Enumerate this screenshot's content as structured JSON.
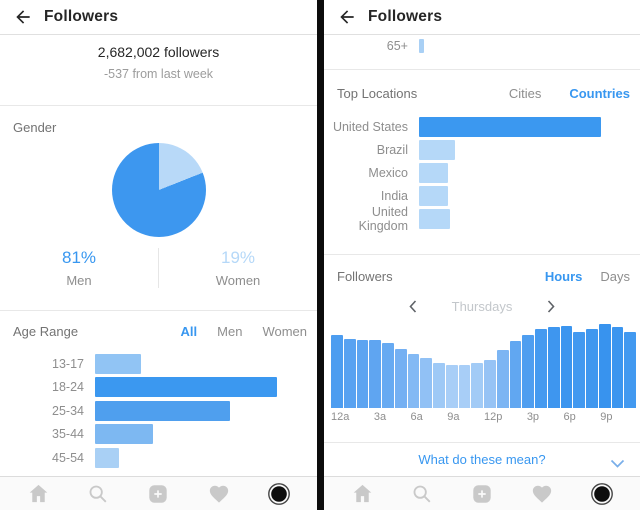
{
  "colors": {
    "accent_blue": "#3897f0",
    "light_blue": "#b5d8f8",
    "divider": "#e8e8e8",
    "text_dark": "#262626",
    "text_gray": "#8e8e8e",
    "nav_icon_gray": "#c9c9c9"
  },
  "left": {
    "header": {
      "title": "Followers",
      "back_icon": "back-arrow"
    },
    "summary": {
      "count": "2,682,002 followers",
      "delta": "-537 from last week"
    },
    "gender": {
      "label": "Gender",
      "chart_data": {
        "type": "pie",
        "slices": [
          {
            "label": "Men",
            "value": 81,
            "color": "#3d97ef"
          },
          {
            "label": "Women",
            "value": 19,
            "color": "#b8d9f8"
          }
        ]
      },
      "stats": [
        {
          "pct": "81%",
          "label": "Men",
          "pct_color": "#3897f0"
        },
        {
          "pct": "19%",
          "label": "Women",
          "pct_color": "#b5d8f8"
        }
      ]
    },
    "age_range": {
      "label": "Age Range",
      "tabs": [
        {
          "label": "All",
          "active": true
        },
        {
          "label": "Men",
          "active": false
        },
        {
          "label": "Women",
          "active": false
        }
      ],
      "chart_data": {
        "type": "bar",
        "orientation": "horizontal",
        "categories": [
          "13-17",
          "18-24",
          "25-34",
          "35-44",
          "45-54"
        ],
        "values": [
          25,
          100,
          74,
          32,
          13
        ],
        "colors": [
          "#91c4f4",
          "#3b98f0",
          "#4f9fee",
          "#7db8f2",
          "#a9d0f5"
        ],
        "unit": "percent of max bar"
      }
    },
    "nav_icons": [
      "home-icon",
      "search-icon",
      "new-post-icon",
      "activity-heart-icon",
      "profile-icon"
    ]
  },
  "right": {
    "header": {
      "title": "Followers",
      "back_icon": "back-arrow"
    },
    "age_overflow": {
      "category": "65+",
      "value": 3,
      "color": "#a9d0f5"
    },
    "top_locations": {
      "label": "Top Locations",
      "tabs": [
        {
          "label": "Cities",
          "active": false
        },
        {
          "label": "Countries",
          "active": true
        }
      ],
      "chart_data": {
        "type": "bar",
        "orientation": "horizontal",
        "categories": [
          "United States",
          "Brazil",
          "Mexico",
          "India",
          "United Kingdom"
        ],
        "values": [
          100,
          20,
          16,
          16,
          17
        ],
        "colors": [
          "#3b98f0",
          "#b5d8f8",
          "#b5d8f8",
          "#b5d8f8",
          "#b5d8f8"
        ],
        "unit": "percent of max bar"
      }
    },
    "followers_activity": {
      "label": "Followers",
      "tabs": [
        {
          "label": "Hours",
          "active": true
        },
        {
          "label": "Days",
          "active": false
        }
      ],
      "day_nav": {
        "prev_icon": "chevron-left",
        "current": "Thursdays",
        "next_icon": "chevron-right"
      },
      "chart_data": {
        "type": "bar",
        "orientation": "vertical",
        "categories": [
          "12a",
          "1a",
          "2a",
          "3a",
          "4a",
          "5a",
          "6a",
          "7a",
          "8a",
          "9a",
          "10a",
          "11a",
          "12p",
          "1p",
          "2p",
          "3p",
          "4p",
          "5p",
          "6p",
          "7p",
          "8p",
          "9p",
          "10p",
          "11p"
        ],
        "values": [
          87,
          82,
          81,
          81,
          77,
          70,
          64,
          59,
          54,
          51,
          51,
          53,
          57,
          69,
          80,
          87,
          94,
          97,
          98,
          91,
          94,
          100,
          97,
          91
        ],
        "colors": [
          "#4d9df0",
          "#58a2f1",
          "#5ca4f1",
          "#5fa5f1",
          "#67aaf2",
          "#74b0f3",
          "#83b9f4",
          "#91c1f5",
          "#9ec9f6",
          "#a8cef7",
          "#a8cef7",
          "#a2cbf6",
          "#96c3f5",
          "#7cb5f3",
          "#61a7f1",
          "#4f9ef0",
          "#459af0",
          "#3e96ef",
          "#3b95ef",
          "#4299f0",
          "#3f97ef",
          "#3893ee",
          "#3b95ef",
          "#4299f0"
        ],
        "x_tick_labels": [
          "12a",
          "3a",
          "6a",
          "9a",
          "12p",
          "3p",
          "6p",
          "9p"
        ],
        "tick_every": 3,
        "unit": "percent of max bar"
      }
    },
    "help": {
      "label": "What do these mean?",
      "chevron_icon": "chevron-down"
    },
    "nav_icons": [
      "home-icon",
      "search-icon",
      "new-post-icon",
      "activity-heart-icon",
      "profile-icon"
    ]
  }
}
